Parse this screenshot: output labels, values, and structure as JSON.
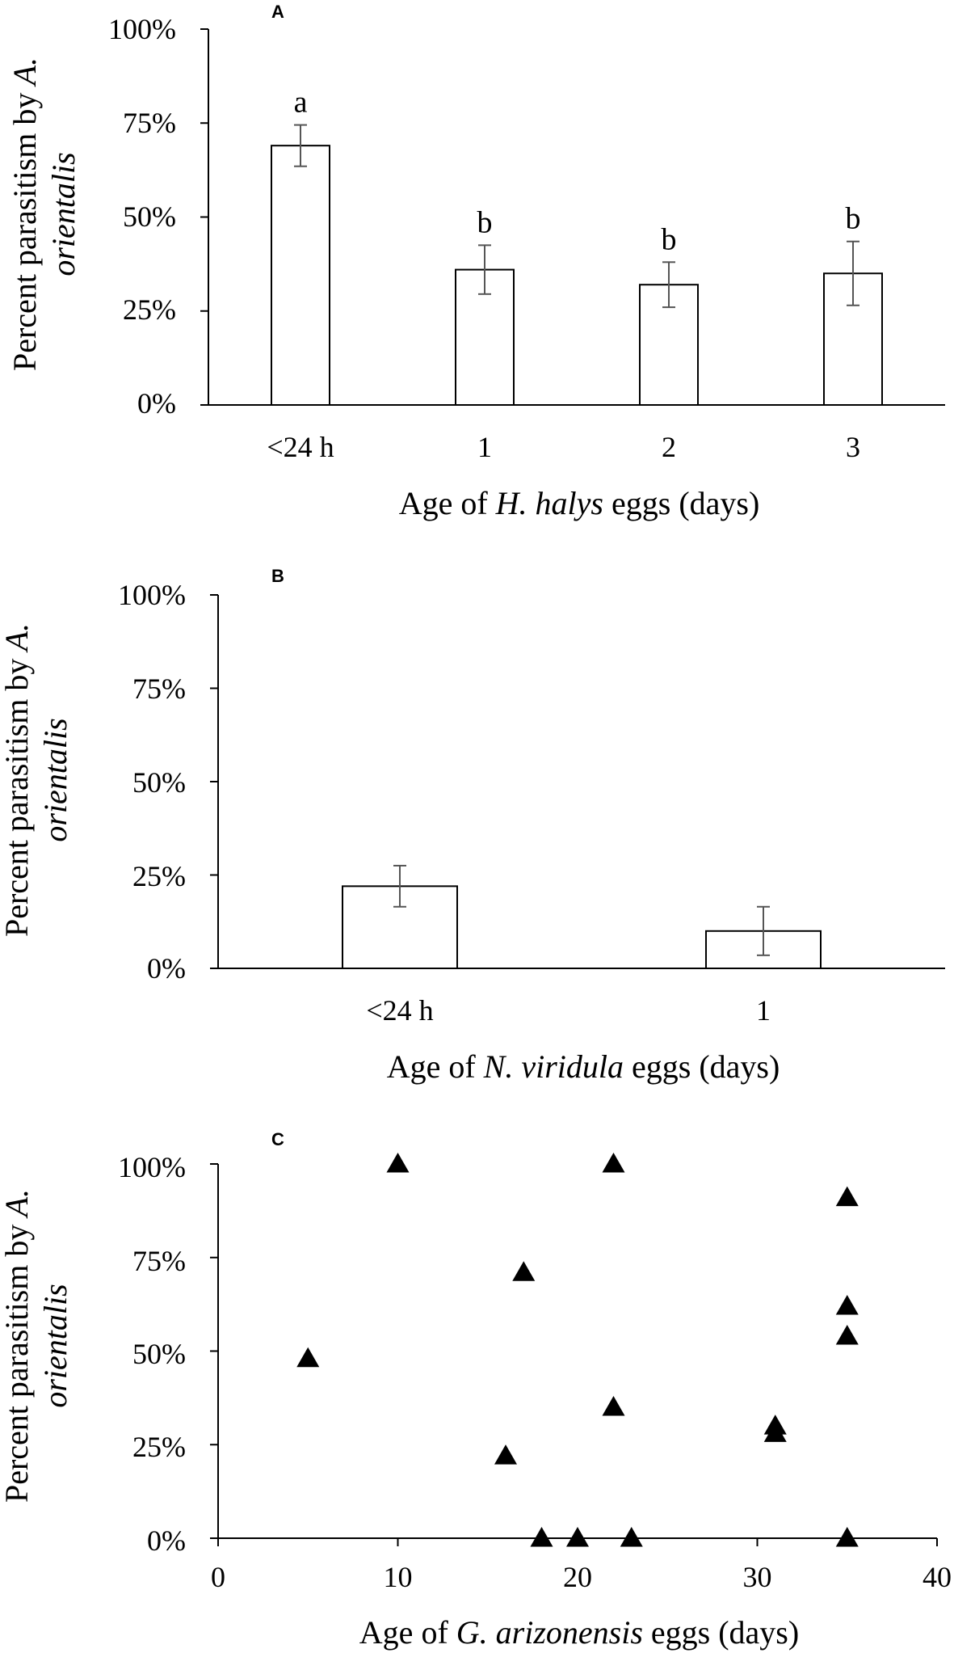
{
  "chart_data": [
    {
      "panel": "A",
      "type": "bar",
      "categories": [
        "<24 h",
        "1",
        "2",
        "3"
      ],
      "values": [
        69,
        36,
        32,
        35
      ],
      "errors": [
        5.5,
        6.5,
        6.0,
        8.5
      ],
      "significance": [
        "a",
        "b",
        "b",
        "b"
      ],
      "ylabel_line1": "Percent parasitism by",
      "ylabel_line1_italic": " A.",
      "ylabel_line2": "orientalis",
      "xlabel_pre": "Age of ",
      "xlabel_italic": "H. halys",
      "xlabel_post": " eggs (days)",
      "ylim": [
        0,
        100
      ],
      "yticks": [
        "0%",
        "25%",
        "50%",
        "75%",
        "100%"
      ]
    },
    {
      "panel": "B",
      "type": "bar",
      "categories": [
        "<24 h",
        "1"
      ],
      "values": [
        22,
        10
      ],
      "errors": [
        5.5,
        6.5
      ],
      "ylabel_line1": "Percent parasitism by",
      "ylabel_line1_italic": " A.",
      "ylabel_line2": "orientalis",
      "xlabel_pre": "Age of ",
      "xlabel_italic": "N. viridula",
      "xlabel_post": " eggs (days)",
      "ylim": [
        0,
        100
      ],
      "yticks": [
        "0%",
        "25%",
        "50%",
        "75%",
        "100%"
      ]
    },
    {
      "panel": "C",
      "type": "scatter",
      "points": [
        {
          "x": 5,
          "y": 48
        },
        {
          "x": 10,
          "y": 100
        },
        {
          "x": 16,
          "y": 22
        },
        {
          "x": 17,
          "y": 71
        },
        {
          "x": 18,
          "y": 0
        },
        {
          "x": 20,
          "y": 0
        },
        {
          "x": 22,
          "y": 100
        },
        {
          "x": 22,
          "y": 35
        },
        {
          "x": 23,
          "y": 0
        },
        {
          "x": 31,
          "y": 30
        },
        {
          "x": 31,
          "y": 28
        },
        {
          "x": 35,
          "y": 91
        },
        {
          "x": 35,
          "y": 62
        },
        {
          "x": 35,
          "y": 54
        },
        {
          "x": 35,
          "y": 0
        }
      ],
      "ylabel_line1": "Percent parasitism by",
      "ylabel_line1_italic": " A.",
      "ylabel_line2": "orientalis",
      "xlabel_pre": "Age of ",
      "xlabel_italic": "G. arizonensis",
      "xlabel_post": " eggs (days)",
      "xlim": [
        0,
        40
      ],
      "ylim": [
        0,
        100
      ],
      "xticks": [
        "0",
        "10",
        "20",
        "30",
        "40"
      ],
      "yticks": [
        "0%",
        "25%",
        "50%",
        "75%",
        "100%"
      ]
    }
  ]
}
